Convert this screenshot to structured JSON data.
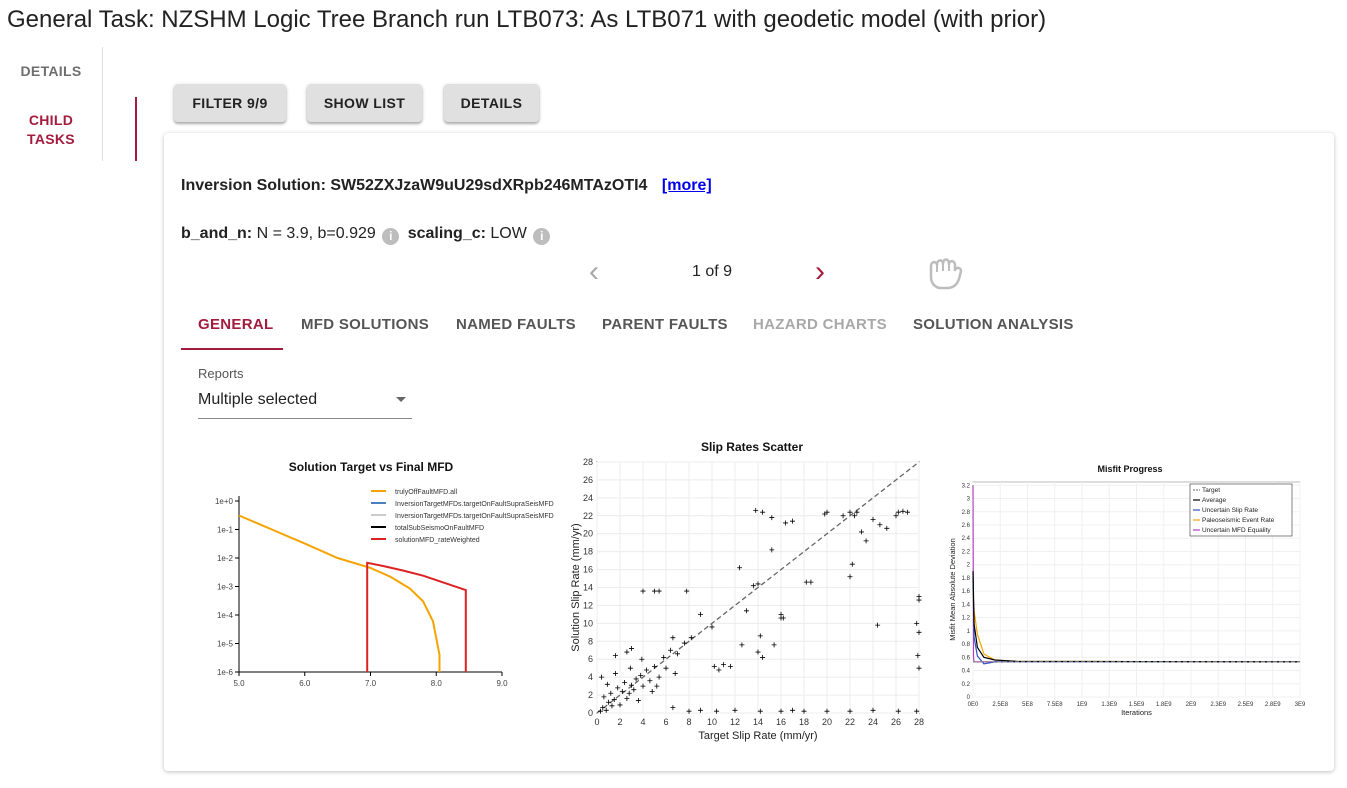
{
  "page": {
    "title": "General Task: NZSHM Logic Tree Branch run LTB073: As LTB071 with geodetic model (with prior)"
  },
  "side_tabs": {
    "details": "DETAILS",
    "child_tasks": "CHILD TASKS"
  },
  "toolbar": {
    "filter_label": "FILTER 9/9",
    "show_list_label": "SHOW LIST",
    "details_label": "DETAILS"
  },
  "card": {
    "inversion_label": "Inversion Solution:",
    "inversion_id": "SW52ZXJzaW9uU29sdXRpb246MTAzOTI4",
    "more_link": "[more]",
    "b_and_n_key": "b_and_n:",
    "b_and_n_value": "N = 3.9, b=0.929",
    "scaling_key": "scaling_c:",
    "scaling_value": "LOW",
    "info_glyph": "i",
    "pager": {
      "prev": "‹",
      "count": "1 of 9",
      "next": "›"
    },
    "tabs": [
      "GENERAL",
      "MFD SOLUTIONS",
      "NAMED FAULTS",
      "PARENT FAULTS",
      "HAZARD CHARTS",
      "SOLUTION ANALYSIS"
    ],
    "reports": {
      "label": "Reports",
      "value": "Multiple selected"
    }
  },
  "colors": {
    "accent": "#a31c3d",
    "disabled": "#a8a8a8"
  },
  "icons": {
    "info": "info-icon",
    "prev": "chevron-left-icon",
    "next": "chevron-right-icon",
    "grab": "hand-grab-icon",
    "dropdown": "caret-down-icon"
  },
  "chart_data": [
    {
      "type": "line",
      "title": "Solution Target vs Final MFD",
      "x_ticks": [
        "5.0",
        "6.0",
        "7.0",
        "8.0",
        "9.0"
      ],
      "y_ticks": [
        "1e+0",
        "1e-1",
        "1e-2",
        "1e-3",
        "1e-4",
        "1e-5",
        "1e-6"
      ],
      "y_scale": "log",
      "xlim": [
        5.0,
        9.0
      ],
      "ylim": [
        1e-06,
        1
      ],
      "legend_position": "top-right",
      "series": [
        {
          "name": "trulyOffFaultMFD.all",
          "color": "#f5a300",
          "x": [
            5.0,
            5.5,
            6.0,
            6.5,
            7.0,
            7.3,
            7.6,
            7.8,
            7.95,
            8.05,
            8.05
          ],
          "y": [
            0.31,
            0.1,
            0.032,
            0.01,
            0.0045,
            0.0022,
            0.00085,
            0.0003,
            6e-05,
            4e-06,
            1e-06
          ]
        },
        {
          "name": "InversionTargetMFDs.targetOnFaultSupraSeisMFD",
          "color": "#4a80bf",
          "x": [],
          "y": []
        },
        {
          "name": "InversionTargetMFDs.targetOnFaultSupraSeisMFD",
          "color": "#cccccc",
          "x": [],
          "y": []
        },
        {
          "name": "totalSubSeismoOnFaultMFD",
          "color": "#000000",
          "x": [],
          "y": []
        },
        {
          "name": "solutionMFD_rateWeighted",
          "color": "#dd2222",
          "x": [
            6.95,
            6.95,
            7.2,
            7.5,
            7.8,
            8.1,
            8.45,
            8.45
          ],
          "y": [
            1e-06,
            0.0068,
            0.0052,
            0.0036,
            0.0024,
            0.0014,
            0.00075,
            1e-06
          ]
        }
      ]
    },
    {
      "type": "scatter",
      "title": "Slip Rates Scatter",
      "xlabel": "Target Slip Rate (mm/yr)",
      "ylabel": "Solution Slip Rate (mm/yr)",
      "xlim": [
        0,
        28
      ],
      "ylim": [
        0,
        28
      ],
      "x_ticks": [
        "0",
        "2",
        "4",
        "6",
        "8",
        "10",
        "12",
        "14",
        "16",
        "18",
        "20",
        "22",
        "24",
        "26",
        "28"
      ],
      "y_ticks": [
        "0",
        "2",
        "4",
        "6",
        "8",
        "10",
        "12",
        "14",
        "16",
        "18",
        "20",
        "22",
        "24",
        "26",
        "28"
      ],
      "grid": true,
      "diagonal": true,
      "points": [
        [
          0.3,
          0.2
        ],
        [
          0.5,
          0.6
        ],
        [
          0.8,
          0.3
        ],
        [
          1.0,
          1.2
        ],
        [
          1.3,
          0.8
        ],
        [
          1.5,
          1.5
        ],
        [
          0.6,
          1.8
        ],
        [
          2.0,
          0.9
        ],
        [
          2.2,
          2.4
        ],
        [
          1.8,
          2.8
        ],
        [
          2.6,
          1.6
        ],
        [
          3.0,
          3.1
        ],
        [
          2.8,
          2.2
        ],
        [
          3.4,
          3.8
        ],
        [
          3.2,
          2.6
        ],
        [
          3.8,
          4.2
        ],
        [
          4.0,
          3.0
        ],
        [
          4.3,
          4.8
        ],
        [
          4.6,
          3.6
        ],
        [
          2.4,
          3.4
        ],
        [
          1.2,
          2.2
        ],
        [
          0.9,
          3.2
        ],
        [
          3.6,
          1.4
        ],
        [
          5.0,
          5.2
        ],
        [
          4.8,
          2.4
        ],
        [
          5.4,
          4.0
        ],
        [
          5.8,
          6.2
        ],
        [
          6.0,
          5.0
        ],
        [
          6.4,
          7.0
        ],
        [
          7.0,
          6.6
        ],
        [
          0.4,
          4.0
        ],
        [
          1.6,
          4.4
        ],
        [
          2.9,
          5.0
        ],
        [
          5.2,
          3.0
        ],
        [
          3.9,
          6.0
        ],
        [
          6.8,
          4.4
        ],
        [
          7.6,
          7.8
        ],
        [
          8.2,
          8.4
        ],
        [
          9.0,
          11.0
        ],
        [
          10.0,
          9.6
        ],
        [
          10.2,
          5.2
        ],
        [
          10.6,
          4.8
        ],
        [
          11.0,
          5.4
        ],
        [
          11.6,
          5.2
        ],
        [
          12.4,
          16.2
        ],
        [
          13.0,
          11.4
        ],
        [
          13.6,
          14.2
        ],
        [
          14.0,
          14.4
        ],
        [
          14.2,
          8.6
        ],
        [
          14.0,
          6.8
        ],
        [
          14.4,
          6.2
        ],
        [
          16.0,
          11.0
        ],
        [
          16.2,
          10.6
        ],
        [
          15.2,
          18.2
        ],
        [
          16.4,
          21.2
        ],
        [
          18.2,
          14.6
        ],
        [
          18.6,
          14.6
        ],
        [
          20.0,
          22.4
        ],
        [
          21.4,
          22.0
        ],
        [
          22.0,
          22.4
        ],
        [
          22.4,
          22.0
        ],
        [
          22.6,
          22.4
        ],
        [
          22.2,
          16.6
        ],
        [
          22.0,
          15.2
        ],
        [
          23.0,
          20.2
        ],
        [
          23.4,
          19.2
        ],
        [
          24.0,
          21.6
        ],
        [
          24.6,
          21.0
        ],
        [
          25.2,
          20.6
        ],
        [
          26.2,
          22.4
        ],
        [
          26.6,
          22.5
        ],
        [
          27.0,
          22.4
        ],
        [
          26.0,
          22.0
        ],
        [
          24.4,
          9.8
        ],
        [
          28.0,
          12.6
        ],
        [
          28.0,
          13.0
        ],
        [
          27.8,
          10.0
        ],
        [
          28.0,
          9.0
        ],
        [
          27.9,
          6.4
        ],
        [
          28.0,
          5.0
        ],
        [
          13.8,
          22.6
        ],
        [
          14.4,
          22.4
        ],
        [
          15.2,
          21.8
        ],
        [
          17.0,
          21.4
        ],
        [
          19.8,
          22.2
        ],
        [
          4.0,
          13.6
        ],
        [
          5.0,
          13.6
        ],
        [
          5.4,
          13.6
        ],
        [
          7.8,
          13.6
        ],
        [
          12.6,
          7.6
        ],
        [
          15.4,
          7.6
        ],
        [
          16.0,
          10.6
        ],
        [
          18.0,
          0.2
        ],
        [
          20.0,
          0.2
        ],
        [
          22.0,
          0.2
        ],
        [
          24.0,
          0.3
        ],
        [
          10.4,
          0.2
        ],
        [
          12.0,
          0.3
        ],
        [
          14.2,
          0.2
        ],
        [
          17.0,
          0.3
        ],
        [
          16.0,
          0.2
        ],
        [
          26.2,
          0.2
        ],
        [
          27.8,
          0.2
        ],
        [
          9.0,
          0.3
        ],
        [
          8.0,
          0.2
        ],
        [
          6.6,
          0.6
        ],
        [
          2.6,
          6.8
        ],
        [
          1.6,
          6.4
        ],
        [
          3.0,
          7.2
        ],
        [
          6.6,
          8.4
        ]
      ]
    },
    {
      "type": "line",
      "title": "Misfit Progress",
      "xlabel": "Iterations",
      "ylabel": "Misfit Mean Absolute Deviation",
      "x_ticks": [
        "0E0",
        "2.5E8",
        "5E8",
        "7.5E8",
        "1E9",
        "1.3E9",
        "1.5E9",
        "1.8E9",
        "2E9",
        "2.3E9",
        "2.5E9",
        "2.8E9",
        "3E9"
      ],
      "y_ticks": [
        "0",
        "0.2",
        "0.4",
        "0.6",
        "0.8",
        "1",
        "1.2",
        "1.4",
        "1.6",
        "1.8",
        "2",
        "2.2",
        "2.4",
        "2.6",
        "2.8",
        "3",
        "3.2"
      ],
      "xlim": [
        0,
        3000000000
      ],
      "ylim": [
        0,
        3.25
      ],
      "legend_position": "top-right",
      "series": [
        {
          "name": "Target",
          "color": "#888888",
          "dashed": true,
          "x": [
            0,
            3000000000
          ],
          "y": [
            0.53,
            0.53
          ]
        },
        {
          "name": "Average",
          "color": "#000000",
          "x": [
            0,
            10000000,
            40000000,
            100000000,
            200000000,
            400000000,
            3000000000
          ],
          "y": [
            1.9,
            1.1,
            0.75,
            0.6,
            0.56,
            0.54,
            0.53
          ]
        },
        {
          "name": "Uncertain Slip Rate",
          "color": "#3050c8",
          "x": [
            0,
            10000000,
            40000000,
            100000000,
            200000000,
            400000000,
            3000000000
          ],
          "y": [
            1.8,
            0.9,
            0.62,
            0.5,
            0.53,
            0.53,
            0.53
          ]
        },
        {
          "name": "Paleoseismic Event Rate",
          "color": "#f5a300",
          "x": [
            0,
            10000000,
            40000000,
            100000000,
            200000000,
            400000000,
            3000000000
          ],
          "y": [
            1.6,
            1.3,
            0.95,
            0.65,
            0.56,
            0.54,
            0.53
          ]
        },
        {
          "name": "Uncertain MFD Equality",
          "color": "#b040c0",
          "x": [
            0,
            5000000,
            10000000,
            3000000000
          ],
          "y": [
            3.2,
            0.6,
            0.53,
            0.53
          ]
        }
      ]
    }
  ]
}
